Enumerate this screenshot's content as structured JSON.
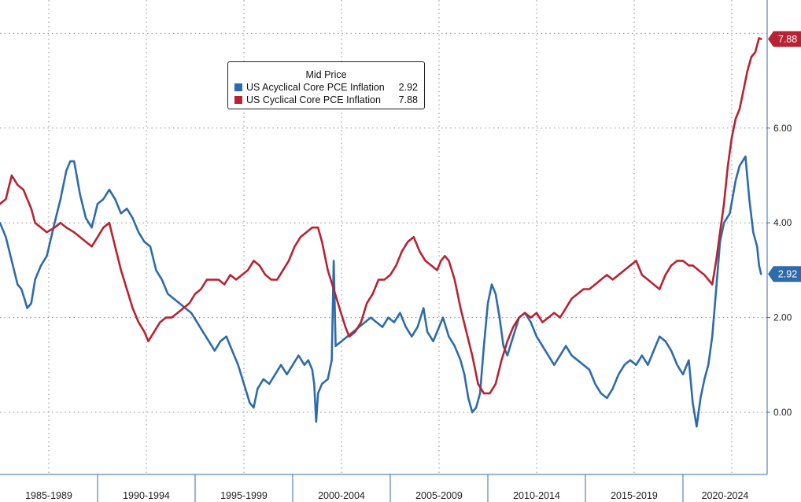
{
  "chart_data": {
    "type": "line",
    "title": "",
    "xlabel": "",
    "ylabel": "",
    "x_range": [
      1984.8,
      2024.4
    ],
    "ylim": [
      -1.0,
      8.6
    ],
    "yticks": [
      0.0,
      2.0,
      4.0,
      6.0
    ],
    "ytick_labels": [
      "0.00",
      "2.00",
      "4.00",
      "6.00"
    ],
    "x_categories": [
      "1985-1989",
      "1990-1994",
      "1995-1999",
      "2000-2004",
      "2005-2009",
      "2010-2014",
      "2015-2019",
      "2020-2024"
    ],
    "x_category_bounds": [
      [
        1985,
        1990
      ],
      [
        1990,
        1995
      ],
      [
        1995,
        2000
      ],
      [
        2000,
        2005
      ],
      [
        2005,
        2010
      ],
      [
        2010,
        2015
      ],
      [
        2015,
        2020
      ],
      [
        2020,
        2025
      ]
    ],
    "grid": true,
    "legend": {
      "title": "Mid Price",
      "position": "top-left"
    },
    "series": [
      {
        "name": "US Acyclical Core PCE Inflation",
        "last_value_label": "2.92",
        "color": "#2e6bab",
        "points": [
          [
            1985.0,
            4.0
          ],
          [
            1985.3,
            3.7
          ],
          [
            1985.6,
            3.2
          ],
          [
            1985.9,
            2.7
          ],
          [
            1986.1,
            2.6
          ],
          [
            1986.4,
            2.2
          ],
          [
            1986.6,
            2.3
          ],
          [
            1986.8,
            2.8
          ],
          [
            1987.1,
            3.1
          ],
          [
            1987.4,
            3.3
          ],
          [
            1987.8,
            4.0
          ],
          [
            1988.1,
            4.5
          ],
          [
            1988.4,
            5.1
          ],
          [
            1988.6,
            5.3
          ],
          [
            1988.8,
            5.3
          ],
          [
            1989.1,
            4.6
          ],
          [
            1989.4,
            4.1
          ],
          [
            1989.7,
            3.9
          ],
          [
            1990.0,
            4.4
          ],
          [
            1990.3,
            4.5
          ],
          [
            1990.6,
            4.7
          ],
          [
            1990.9,
            4.5
          ],
          [
            1991.2,
            4.2
          ],
          [
            1991.5,
            4.3
          ],
          [
            1991.8,
            4.1
          ],
          [
            1992.1,
            3.8
          ],
          [
            1992.4,
            3.6
          ],
          [
            1992.7,
            3.5
          ],
          [
            1993.0,
            3.0
          ],
          [
            1993.3,
            2.8
          ],
          [
            1993.6,
            2.5
          ],
          [
            1993.9,
            2.4
          ],
          [
            1994.2,
            2.3
          ],
          [
            1994.5,
            2.2
          ],
          [
            1994.8,
            2.1
          ],
          [
            1995.1,
            1.9
          ],
          [
            1995.4,
            1.7
          ],
          [
            1995.7,
            1.5
          ],
          [
            1996.0,
            1.3
          ],
          [
            1996.3,
            1.5
          ],
          [
            1996.6,
            1.6
          ],
          [
            1996.9,
            1.3
          ],
          [
            1997.2,
            1.0
          ],
          [
            1997.5,
            0.6
          ],
          [
            1997.8,
            0.2
          ],
          [
            1998.0,
            0.1
          ],
          [
            1998.2,
            0.5
          ],
          [
            1998.5,
            0.7
          ],
          [
            1998.8,
            0.6
          ],
          [
            1999.1,
            0.8
          ],
          [
            1999.4,
            1.0
          ],
          [
            1999.7,
            0.8
          ],
          [
            2000.0,
            1.0
          ],
          [
            2000.3,
            1.2
          ],
          [
            2000.6,
            1.0
          ],
          [
            2000.8,
            1.1
          ],
          [
            2001.0,
            0.9
          ],
          [
            2001.1,
            0.6
          ],
          [
            2001.2,
            -0.2
          ],
          [
            2001.3,
            0.4
          ],
          [
            2001.5,
            0.6
          ],
          [
            2001.8,
            0.7
          ],
          [
            2002.0,
            1.1
          ],
          [
            2002.1,
            3.2
          ],
          [
            2002.2,
            1.4
          ],
          [
            2002.5,
            1.5
          ],
          [
            2002.8,
            1.6
          ],
          [
            2003.1,
            1.7
          ],
          [
            2003.4,
            1.8
          ],
          [
            2003.7,
            1.9
          ],
          [
            2004.0,
            2.0
          ],
          [
            2004.3,
            1.9
          ],
          [
            2004.6,
            1.8
          ],
          [
            2004.9,
            2.0
          ],
          [
            2005.2,
            1.9
          ],
          [
            2005.5,
            2.1
          ],
          [
            2005.8,
            1.8
          ],
          [
            2006.1,
            1.6
          ],
          [
            2006.4,
            1.8
          ],
          [
            2006.7,
            2.2
          ],
          [
            2006.9,
            1.7
          ],
          [
            2007.2,
            1.5
          ],
          [
            2007.5,
            1.8
          ],
          [
            2007.7,
            2.0
          ],
          [
            2008.0,
            1.6
          ],
          [
            2008.3,
            1.4
          ],
          [
            2008.6,
            1.1
          ],
          [
            2008.8,
            0.8
          ],
          [
            2009.0,
            0.3
          ],
          [
            2009.2,
            0.0
          ],
          [
            2009.4,
            0.1
          ],
          [
            2009.6,
            0.4
          ],
          [
            2009.8,
            1.4
          ],
          [
            2010.0,
            2.3
          ],
          [
            2010.2,
            2.7
          ],
          [
            2010.4,
            2.5
          ],
          [
            2010.6,
            2.0
          ],
          [
            2010.8,
            1.4
          ],
          [
            2011.0,
            1.2
          ],
          [
            2011.3,
            1.6
          ],
          [
            2011.6,
            2.0
          ],
          [
            2011.9,
            2.1
          ],
          [
            2012.2,
            1.9
          ],
          [
            2012.5,
            1.6
          ],
          [
            2012.8,
            1.4
          ],
          [
            2013.1,
            1.2
          ],
          [
            2013.4,
            1.0
          ],
          [
            2013.7,
            1.2
          ],
          [
            2014.0,
            1.4
          ],
          [
            2014.3,
            1.2
          ],
          [
            2014.6,
            1.1
          ],
          [
            2014.9,
            1.0
          ],
          [
            2015.2,
            0.9
          ],
          [
            2015.5,
            0.6
          ],
          [
            2015.8,
            0.4
          ],
          [
            2016.1,
            0.3
          ],
          [
            2016.4,
            0.5
          ],
          [
            2016.7,
            0.8
          ],
          [
            2017.0,
            1.0
          ],
          [
            2017.3,
            1.1
          ],
          [
            2017.6,
            1.0
          ],
          [
            2017.9,
            1.2
          ],
          [
            2018.2,
            1.0
          ],
          [
            2018.5,
            1.3
          ],
          [
            2018.8,
            1.6
          ],
          [
            2019.1,
            1.5
          ],
          [
            2019.4,
            1.3
          ],
          [
            2019.7,
            1.0
          ],
          [
            2020.0,
            0.8
          ],
          [
            2020.3,
            1.1
          ],
          [
            2020.5,
            0.2
          ],
          [
            2020.7,
            -0.3
          ],
          [
            2020.9,
            0.3
          ],
          [
            2021.1,
            0.7
          ],
          [
            2021.3,
            1.0
          ],
          [
            2021.5,
            1.6
          ],
          [
            2021.7,
            2.6
          ],
          [
            2021.9,
            3.6
          ],
          [
            2022.1,
            4.0
          ],
          [
            2022.4,
            4.2
          ],
          [
            2022.7,
            4.9
          ],
          [
            2022.9,
            5.2
          ],
          [
            2023.2,
            5.4
          ],
          [
            2023.4,
            4.5
          ],
          [
            2023.6,
            3.8
          ],
          [
            2023.8,
            3.5
          ],
          [
            2023.9,
            3.1
          ],
          [
            2024.0,
            2.92
          ]
        ]
      },
      {
        "name": "US Cyclical Core PCE Inflation",
        "last_value_label": "7.88",
        "color": "#b82233",
        "points": [
          [
            1985.0,
            4.4
          ],
          [
            1985.3,
            4.5
          ],
          [
            1985.6,
            5.0
          ],
          [
            1985.9,
            4.8
          ],
          [
            1986.2,
            4.7
          ],
          [
            1986.4,
            4.5
          ],
          [
            1986.6,
            4.3
          ],
          [
            1986.8,
            4.0
          ],
          [
            1987.1,
            3.9
          ],
          [
            1987.4,
            3.8
          ],
          [
            1987.8,
            3.9
          ],
          [
            1988.1,
            4.0
          ],
          [
            1988.4,
            3.9
          ],
          [
            1988.8,
            3.8
          ],
          [
            1989.1,
            3.7
          ],
          [
            1989.4,
            3.6
          ],
          [
            1989.7,
            3.5
          ],
          [
            1990.0,
            3.7
          ],
          [
            1990.3,
            3.9
          ],
          [
            1990.6,
            4.0
          ],
          [
            1990.9,
            3.5
          ],
          [
            1991.2,
            3.0
          ],
          [
            1991.5,
            2.6
          ],
          [
            1991.8,
            2.2
          ],
          [
            1992.1,
            1.9
          ],
          [
            1992.4,
            1.7
          ],
          [
            1992.6,
            1.5
          ],
          [
            1992.9,
            1.7
          ],
          [
            1993.2,
            1.9
          ],
          [
            1993.5,
            2.0
          ],
          [
            1993.8,
            2.0
          ],
          [
            1994.1,
            2.1
          ],
          [
            1994.4,
            2.2
          ],
          [
            1994.7,
            2.3
          ],
          [
            1995.0,
            2.5
          ],
          [
            1995.3,
            2.6
          ],
          [
            1995.6,
            2.8
          ],
          [
            1995.9,
            2.8
          ],
          [
            1996.2,
            2.8
          ],
          [
            1996.5,
            2.7
          ],
          [
            1996.8,
            2.9
          ],
          [
            1997.1,
            2.8
          ],
          [
            1997.4,
            2.9
          ],
          [
            1997.7,
            3.0
          ],
          [
            1998.0,
            3.2
          ],
          [
            1998.3,
            3.1
          ],
          [
            1998.6,
            2.9
          ],
          [
            1998.9,
            2.8
          ],
          [
            1999.2,
            2.8
          ],
          [
            1999.5,
            3.0
          ],
          [
            1999.8,
            3.2
          ],
          [
            2000.1,
            3.5
          ],
          [
            2000.4,
            3.7
          ],
          [
            2000.7,
            3.8
          ],
          [
            2001.0,
            3.9
          ],
          [
            2001.3,
            3.9
          ],
          [
            2001.5,
            3.6
          ],
          [
            2001.8,
            3.0
          ],
          [
            2002.1,
            2.6
          ],
          [
            2002.4,
            2.2
          ],
          [
            2002.7,
            1.8
          ],
          [
            2002.9,
            1.6
          ],
          [
            2003.2,
            1.7
          ],
          [
            2003.5,
            1.9
          ],
          [
            2003.8,
            2.3
          ],
          [
            2004.1,
            2.5
          ],
          [
            2004.4,
            2.8
          ],
          [
            2004.7,
            2.8
          ],
          [
            2005.0,
            2.9
          ],
          [
            2005.3,
            3.1
          ],
          [
            2005.6,
            3.4
          ],
          [
            2005.9,
            3.6
          ],
          [
            2006.2,
            3.7
          ],
          [
            2006.5,
            3.4
          ],
          [
            2006.8,
            3.2
          ],
          [
            2007.1,
            3.1
          ],
          [
            2007.4,
            3.0
          ],
          [
            2007.6,
            3.2
          ],
          [
            2007.8,
            3.3
          ],
          [
            2008.0,
            3.2
          ],
          [
            2008.3,
            2.8
          ],
          [
            2008.6,
            2.2
          ],
          [
            2008.9,
            1.7
          ],
          [
            2009.2,
            1.2
          ],
          [
            2009.5,
            0.6
          ],
          [
            2009.8,
            0.4
          ],
          [
            2010.1,
            0.4
          ],
          [
            2010.4,
            0.6
          ],
          [
            2010.7,
            1.1
          ],
          [
            2011.0,
            1.5
          ],
          [
            2011.3,
            1.8
          ],
          [
            2011.6,
            2.0
          ],
          [
            2011.9,
            2.1
          ],
          [
            2012.2,
            2.0
          ],
          [
            2012.5,
            2.1
          ],
          [
            2012.8,
            1.9
          ],
          [
            2013.1,
            2.0
          ],
          [
            2013.4,
            2.1
          ],
          [
            2013.7,
            2.0
          ],
          [
            2014.0,
            2.2
          ],
          [
            2014.3,
            2.4
          ],
          [
            2014.6,
            2.5
          ],
          [
            2014.9,
            2.6
          ],
          [
            2015.2,
            2.6
          ],
          [
            2015.5,
            2.7
          ],
          [
            2015.8,
            2.8
          ],
          [
            2016.1,
            2.9
          ],
          [
            2016.4,
            2.8
          ],
          [
            2016.7,
            2.9
          ],
          [
            2017.0,
            3.0
          ],
          [
            2017.3,
            3.1
          ],
          [
            2017.6,
            3.2
          ],
          [
            2017.9,
            2.9
          ],
          [
            2018.2,
            2.8
          ],
          [
            2018.5,
            2.7
          ],
          [
            2018.8,
            2.6
          ],
          [
            2019.1,
            2.9
          ],
          [
            2019.4,
            3.1
          ],
          [
            2019.7,
            3.2
          ],
          [
            2020.0,
            3.2
          ],
          [
            2020.3,
            3.1
          ],
          [
            2020.5,
            3.1
          ],
          [
            2020.8,
            3.0
          ],
          [
            2021.1,
            2.9
          ],
          [
            2021.3,
            2.8
          ],
          [
            2021.5,
            2.7
          ],
          [
            2021.7,
            3.2
          ],
          [
            2021.9,
            3.8
          ],
          [
            2022.1,
            4.4
          ],
          [
            2022.3,
            5.2
          ],
          [
            2022.5,
            5.8
          ],
          [
            2022.7,
            6.2
          ],
          [
            2022.9,
            6.4
          ],
          [
            2023.1,
            6.8
          ],
          [
            2023.3,
            7.2
          ],
          [
            2023.5,
            7.5
          ],
          [
            2023.7,
            7.6
          ],
          [
            2023.9,
            7.9
          ],
          [
            2024.0,
            7.88
          ]
        ]
      }
    ]
  }
}
